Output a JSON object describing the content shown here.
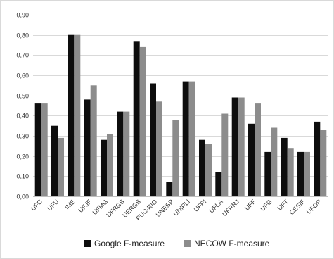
{
  "chart_data": {
    "type": "bar",
    "categories": [
      "UFC",
      "UFU",
      "IME",
      "UFJF",
      "UFMG",
      "UFRGS",
      "UERGS",
      "PUC-RIO",
      "UNESP",
      "UNIPLI",
      "UFPI",
      "UFLA",
      "UFRRJ",
      "UFF",
      "UFG",
      "UFT",
      "CESIF",
      "UFOP"
    ],
    "series": [
      {
        "name": "Google F-measure",
        "color": "#0d0d0d",
        "values": [
          0.46,
          0.35,
          0.8,
          0.48,
          0.28,
          0.42,
          0.77,
          0.56,
          0.07,
          0.57,
          0.28,
          0.12,
          0.49,
          0.36,
          0.22,
          0.29,
          0.22,
          0.37
        ]
      },
      {
        "name": "NECOW F-measure",
        "color": "#8c8c8c",
        "values": [
          0.46,
          0.29,
          0.8,
          0.55,
          0.31,
          0.42,
          0.74,
          0.47,
          0.38,
          0.57,
          0.26,
          0.41,
          0.49,
          0.46,
          0.34,
          0.24,
          0.22,
          0.33
        ]
      }
    ],
    "ylim": [
      0,
      0.9
    ],
    "y_ticks": [
      "0,00",
      "0,10",
      "0,20",
      "0,30",
      "0,40",
      "0,50",
      "0,60",
      "0,70",
      "0,80",
      "0,90"
    ],
    "y_tick_values": [
      0,
      0.1,
      0.2,
      0.3,
      0.4,
      0.5,
      0.6,
      0.7,
      0.8,
      0.9
    ],
    "grid": true,
    "legend_position": "bottom",
    "title": "",
    "xlabel": "",
    "ylabel": ""
  }
}
